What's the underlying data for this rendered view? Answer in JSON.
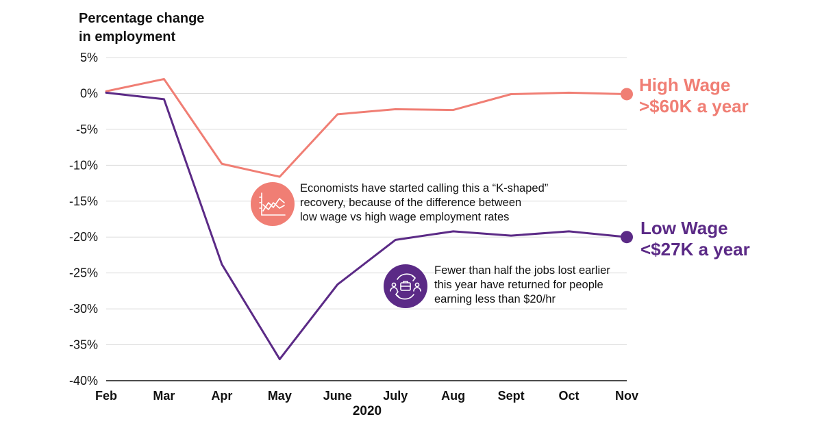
{
  "chart_data": {
    "type": "line",
    "ylabel": [
      "Percentage change",
      "in employment"
    ],
    "xlabel": "2020",
    "categories": [
      "Feb",
      "Mar",
      "Apr",
      "May",
      "June",
      "July",
      "Aug",
      "Sept",
      "Oct",
      "Nov"
    ],
    "ylim": [
      -40,
      5
    ],
    "yticks": [
      "5%",
      "0%",
      "-5%",
      "-10%",
      "-15%",
      "-20%",
      "-25%",
      "-30%",
      "-35%",
      "-40%"
    ],
    "ytick_values": [
      5,
      0,
      -5,
      -10,
      -15,
      -20,
      -25,
      -30,
      -35,
      -40
    ],
    "grid": true,
    "series": [
      {
        "name": "High Wage >$60K a year",
        "label_lines": [
          "High Wage",
          ">$60K a year"
        ],
        "color": "#F07E74",
        "values": [
          0.3,
          2.0,
          -9.8,
          -11.6,
          -2.9,
          -2.2,
          -2.3,
          -0.1,
          0.1,
          -0.1
        ]
      },
      {
        "name": "Low Wage <$27K a year",
        "label_lines": [
          "Low Wage",
          "<$27K a year"
        ],
        "color": "#5B2A86",
        "values": [
          0.1,
          -0.8,
          -23.8,
          -37.0,
          -26.6,
          -20.4,
          -19.2,
          -19.8,
          -19.2,
          -20.0
        ]
      }
    ],
    "annotations": [
      {
        "text": [
          "Economists have started calling this a “K-shaped”",
          "recovery, because of the difference between",
          "low wage vs high wage employment rates"
        ],
        "icon": "chart-lines-icon",
        "color": "#F07E74"
      },
      {
        "text": [
          "Fewer than half the jobs lost earlier",
          "this year have returned for people",
          "earning less than $20/hr"
        ],
        "icon": "briefcase-people-icon",
        "color": "#5B2A86"
      }
    ]
  }
}
